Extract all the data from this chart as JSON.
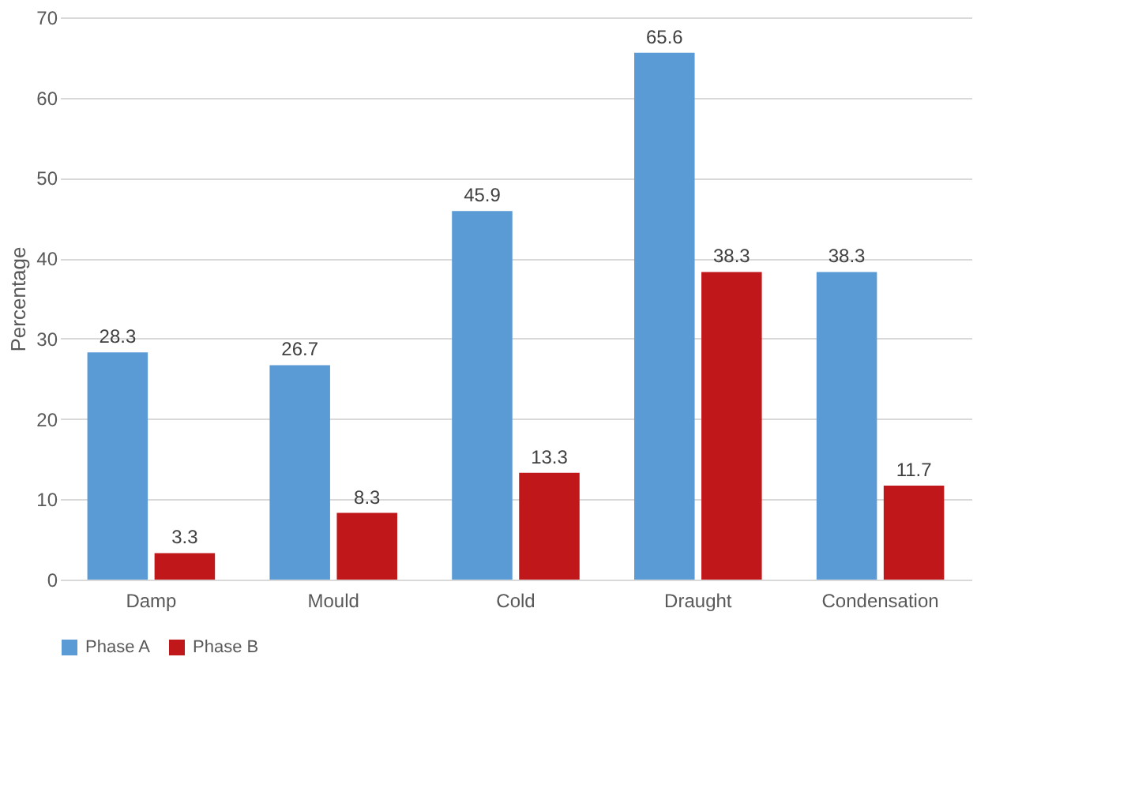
{
  "chart_data": {
    "type": "bar",
    "ylabel": "Percentage",
    "categories": [
      "Damp",
      "Mould",
      "Cold",
      "Draught",
      "Condensation"
    ],
    "series": [
      {
        "name": "Phase A",
        "color": "#5b9bd5",
        "values": [
          28.3,
          26.7,
          45.9,
          65.6,
          38.3
        ]
      },
      {
        "name": "Phase B",
        "color": "#c0171b",
        "values": [
          3.3,
          8.3,
          13.3,
          38.3,
          11.7
        ]
      }
    ],
    "ylim": [
      0,
      70
    ],
    "yticks": [
      0,
      10,
      20,
      30,
      40,
      50,
      60,
      70
    ],
    "grid": "y",
    "legend": "bottom",
    "data_labels": true
  }
}
